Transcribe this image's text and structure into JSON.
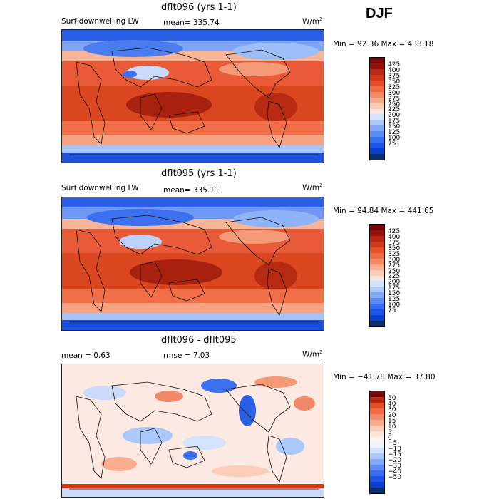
{
  "season": "DJF",
  "panels": [
    {
      "title": "dflt096 (yrs 1-1)",
      "left_label": "Surf downwelling LW",
      "mean_label": "mean= 335.74",
      "units": "W/m",
      "units_sup": "2",
      "minmax": "Min =  92.36 Max = 438.18",
      "cbar_colors": [
        "#08306b",
        "#0a3fd6",
        "#1c54e8",
        "#3a6ef0",
        "#5b8cf4",
        "#82aaf7",
        "#aac8fa",
        "#d4e3fc",
        "#fde7dd",
        "#fbcdb8",
        "#f8ad8e",
        "#f48a66",
        "#ee6b44",
        "#e4502a",
        "#d03a1a",
        "#b62a12",
        "#990f0a",
        "#7a0606"
      ],
      "cbar_levels": [
        "425",
        "400",
        "375",
        "350",
        "325",
        "300",
        "275",
        "250",
        "225",
        "200",
        "175",
        "150",
        "125",
        "100",
        "75"
      ]
    },
    {
      "title": "dflt095 (yrs 1-1)",
      "left_label": "Surf downwelling LW",
      "mean_label": "mean= 335.11",
      "units": "W/m",
      "units_sup": "2",
      "minmax": "Min =  94.84 Max = 441.65",
      "cbar_colors": [
        "#08306b",
        "#0a3fd6",
        "#1c54e8",
        "#3a6ef0",
        "#5b8cf4",
        "#82aaf7",
        "#aac8fa",
        "#d4e3fc",
        "#fde7dd",
        "#fbcdb8",
        "#f8ad8e",
        "#f48a66",
        "#ee6b44",
        "#e4502a",
        "#d03a1a",
        "#b62a12",
        "#990f0a",
        "#7a0606"
      ],
      "cbar_levels": [
        "425",
        "400",
        "375",
        "350",
        "325",
        "300",
        "275",
        "250",
        "225",
        "200",
        "175",
        "150",
        "125",
        "100",
        "75"
      ]
    },
    {
      "title": "dflt096 - dflt095",
      "left_label": "mean =    0.63",
      "mean_label": "rmse =    7.03",
      "units": "W/m",
      "units_sup": "2",
      "minmax": "Min = −41.78 Max =   37.80",
      "cbar_colors": [
        "#08306b",
        "#0a3fd6",
        "#1c54e8",
        "#3a6ef0",
        "#5b8cf4",
        "#82aaf7",
        "#aac8fa",
        "#d4e3fc",
        "#eef4ff",
        "#fff3ee",
        "#fde7dd",
        "#fbcdb8",
        "#f8ad8e",
        "#f48a66",
        "#ee6b44",
        "#e4502a",
        "#b62a12",
        "#7a0606"
      ],
      "cbar_levels": [
        "50",
        "40",
        "30",
        "20",
        "15",
        "10",
        "5",
        "0",
        "−5",
        "−10",
        "−15",
        "−20",
        "−30",
        "−40",
        "−50"
      ]
    }
  ]
}
